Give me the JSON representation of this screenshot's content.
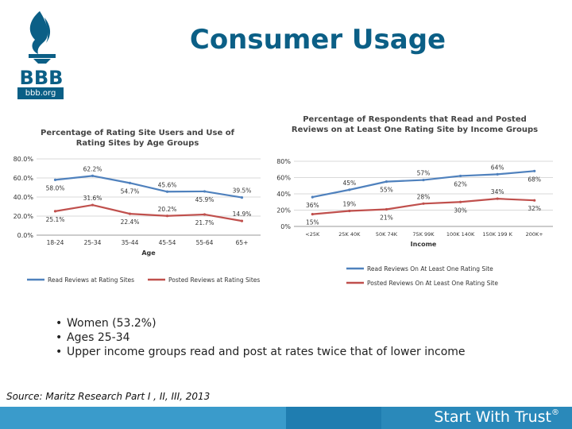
{
  "header": {
    "title": "Consumer Usage",
    "logo_text": "BBB",
    "logo_url": "bbb.org"
  },
  "bullets": [
    "Women (53.2%)",
    "Ages 25-34",
    "Upper income groups read and post at rates twice that of lower income"
  ],
  "source": "Source: Maritz Research Part I , II, III, 2013",
  "footer": {
    "tagline": "Start With Trust",
    "mark": "®"
  },
  "colors": {
    "brand": "#0b5f86",
    "read_series": "#4f81bd",
    "posted_series": "#c0504d",
    "footer": "#2a89ba"
  },
  "chart_data": [
    {
      "type": "line",
      "title": "Percentage of Rating Site Users and Use of Rating Sites by Age Groups",
      "xlabel": "Age",
      "ylabel": "",
      "categories": [
        "18-24",
        "25-34",
        "35-44",
        "45-54",
        "55-64",
        "65+"
      ],
      "ylim": [
        0,
        80
      ],
      "yticks": [
        "0.0%",
        "20.0%",
        "40.0%",
        "60.0%",
        "80.0%"
      ],
      "grid": true,
      "legend": "bottom",
      "series": [
        {
          "name": "Read Reviews at Rating Sites",
          "values": [
            58.0,
            62.2,
            54.7,
            45.6,
            45.9,
            39.5
          ],
          "labels": [
            "58.0%",
            "62.2%",
            "54.7%",
            "45.6%",
            "45.9%",
            "39.5%"
          ]
        },
        {
          "name": "Posted Reviews at Rating Sites",
          "values": [
            25.1,
            31.6,
            22.4,
            20.2,
            21.7,
            14.9
          ],
          "labels": [
            "25.1%",
            "31.6%",
            "22.4%",
            "20.2%",
            "21.7%",
            "14.9%"
          ]
        }
      ]
    },
    {
      "type": "line",
      "title": "Percentage of Respondents that Read and Posted Reviews on at Least One Rating Site by Income Groups",
      "xlabel": "Income",
      "ylabel": "",
      "categories": [
        "<25K",
        "25K 40K",
        "50K 74K",
        "75K 99K",
        "100K 140K",
        "150K 199 K",
        "200K+"
      ],
      "ylim": [
        0,
        80
      ],
      "yticks": [
        "0%",
        "20%",
        "40%",
        "60%",
        "80%"
      ],
      "grid": true,
      "legend": "bottom",
      "series": [
        {
          "name": "Read Reviews On At Least One Rating Site",
          "values": [
            36,
            45,
            55,
            57,
            62,
            64,
            68
          ],
          "labels": [
            "36%",
            "45%",
            "55%",
            "57%",
            "62%",
            "64%",
            "68%"
          ]
        },
        {
          "name": "Posted Reviews On At Least One Rating Site",
          "values": [
            15,
            19,
            21,
            28,
            30,
            34,
            32
          ],
          "labels": [
            "15%",
            "19%",
            "21%",
            "28%",
            "30%",
            "34%",
            "32%"
          ]
        }
      ]
    }
  ]
}
